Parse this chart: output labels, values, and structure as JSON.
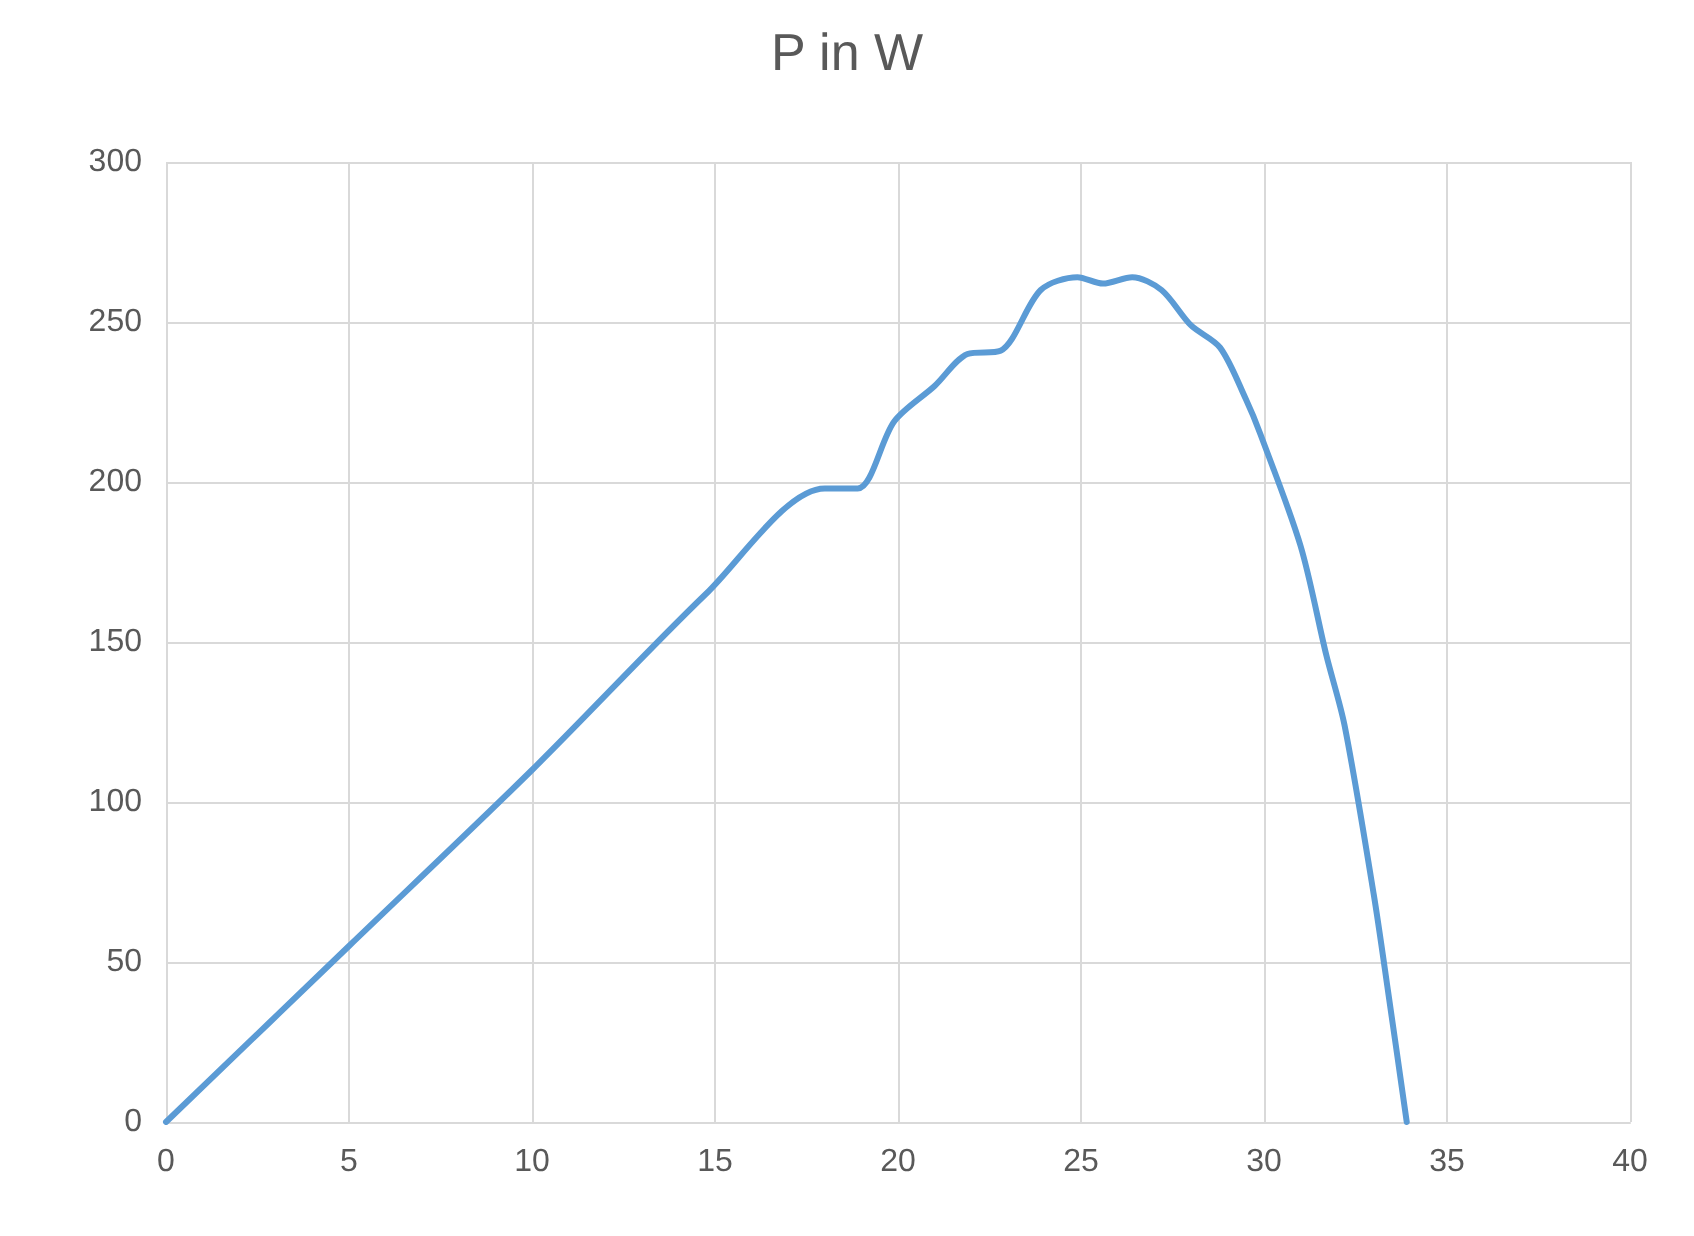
{
  "chart_data": {
    "type": "line",
    "title": "P in W",
    "series": [
      {
        "color": "#5b9bd5",
        "x": [
          0,
          5,
          10,
          14.75,
          18,
          18.9,
          19.9,
          21,
          21.9,
          22.8,
          23.9,
          24.9,
          25.6,
          26.4,
          27.2,
          28,
          28.8,
          29.5,
          29.9,
          31,
          31.7,
          32.2,
          33,
          33.4,
          33.9
        ],
        "values": [
          0,
          55,
          110,
          165,
          198,
          198,
          219,
          230,
          240,
          241,
          260,
          264,
          262,
          264,
          260,
          249,
          242,
          226,
          215,
          180,
          146,
          124,
          71,
          40,
          0
        ]
      }
    ],
    "xlim": [
      0,
      40
    ],
    "xticks": [
      0,
      5,
      10,
      15,
      20,
      25,
      30,
      35,
      40
    ],
    "ylim": [
      0,
      300
    ],
    "yticks": [
      0,
      50,
      100,
      150,
      200,
      250,
      300
    ],
    "grid": true,
    "marker": "none",
    "line_style": "solid"
  }
}
